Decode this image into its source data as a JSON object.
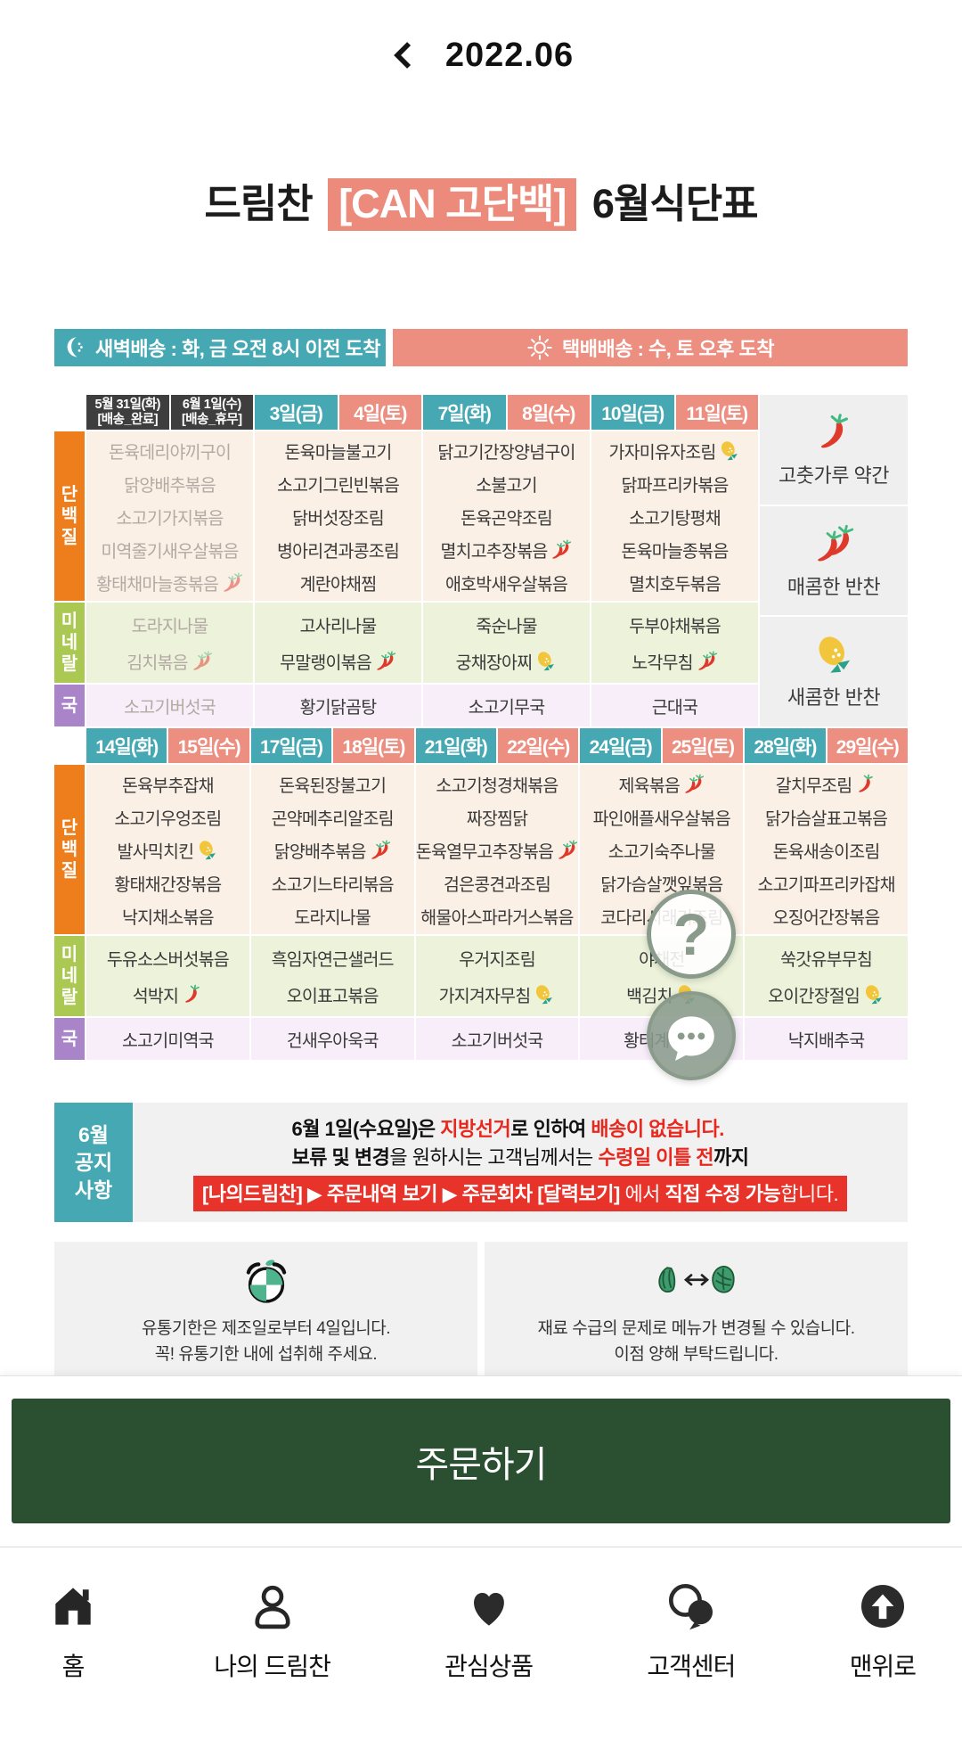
{
  "header": {
    "month": "2022.06"
  },
  "title": {
    "prefix": "드림찬",
    "highlight": "[CAN 고단백]",
    "suffix": "6월식단표"
  },
  "banners": {
    "dawn": {
      "icon": "moon",
      "text": "새벽배송 : 화, 금 오전 8시 이전 도착"
    },
    "parcel": {
      "icon": "sun",
      "text": "택배배송 : 수, 토  오후 도착"
    }
  },
  "row_labels": {
    "protein": "단백질",
    "mineral": "미네랄",
    "soup": "국"
  },
  "legend": [
    {
      "icon": "chili1",
      "label": "고춧가루 약간"
    },
    {
      "icon": "chili2",
      "label": "매콤한 반찬"
    },
    {
      "icon": "lemon",
      "label": "새콤한 반찬"
    }
  ],
  "weeks": [
    {
      "dates": [
        {
          "label": "5월 31일(화)",
          "sub": "[배송_완료]",
          "type": "dark"
        },
        {
          "label": "6월 1일(수)",
          "sub": "[배송_휴무]",
          "type": "dark"
        },
        {
          "label": "3일(금)",
          "type": "teal"
        },
        {
          "label": "4일(토)",
          "type": "salmon"
        },
        {
          "label": "7일(화)",
          "type": "teal"
        },
        {
          "label": "8일(수)",
          "type": "salmon"
        },
        {
          "label": "10일(금)",
          "type": "teal"
        },
        {
          "label": "11일(토)",
          "type": "salmon"
        }
      ],
      "protein": [
        {
          "muted": true,
          "items": [
            {
              "t": "돈육데리야끼구이"
            },
            {
              "t": "닭양배추볶음"
            },
            {
              "t": "소고기가지볶음"
            },
            {
              "t": "미역줄기새우살볶음"
            },
            {
              "t": "황태채마늘종볶음",
              "icon": "chili2"
            }
          ]
        },
        {
          "items": [
            {
              "t": "돈육마늘불고기"
            },
            {
              "t": "소고기그린빈볶음"
            },
            {
              "t": "닭버섯장조림"
            },
            {
              "t": "병아리견과콩조림"
            },
            {
              "t": "계란야채찜"
            }
          ]
        },
        {
          "items": [
            {
              "t": "닭고기간장양념구이"
            },
            {
              "t": "소불고기"
            },
            {
              "t": "돈육곤약조림"
            },
            {
              "t": "멸치고추장볶음",
              "icon": "chili2"
            },
            {
              "t": "애호박새우살볶음"
            }
          ]
        },
        {
          "items": [
            {
              "t": "가자미유자조림",
              "icon": "lemon"
            },
            {
              "t": "닭파프리카볶음"
            },
            {
              "t": "소고기탕평채"
            },
            {
              "t": "돈육마늘종볶음"
            },
            {
              "t": "멸치호두볶음"
            }
          ]
        }
      ],
      "mineral": [
        {
          "muted": true,
          "items": [
            {
              "t": "도라지나물"
            },
            {
              "t": "김치볶음",
              "icon": "chili2"
            }
          ]
        },
        {
          "items": [
            {
              "t": "고사리나물"
            },
            {
              "t": "무말랭이볶음",
              "icon": "chili2"
            }
          ]
        },
        {
          "items": [
            {
              "t": "죽순나물"
            },
            {
              "t": "궁채장아찌",
              "icon": "lemon"
            }
          ]
        },
        {
          "items": [
            {
              "t": "두부야채볶음"
            },
            {
              "t": "노각무침",
              "icon": "chili2"
            }
          ]
        }
      ],
      "soup": [
        {
          "muted": true,
          "items": [
            {
              "t": "소고기버섯국"
            }
          ]
        },
        {
          "items": [
            {
              "t": "황기닭곰탕"
            }
          ]
        },
        {
          "items": [
            {
              "t": "소고기무국"
            }
          ]
        },
        {
          "items": [
            {
              "t": "근대국"
            }
          ]
        }
      ]
    },
    {
      "dates": [
        {
          "label": "14일(화)",
          "type": "teal"
        },
        {
          "label": "15일(수)",
          "type": "salmon"
        },
        {
          "label": "17일(금)",
          "type": "teal"
        },
        {
          "label": "18일(토)",
          "type": "salmon"
        },
        {
          "label": "21일(화)",
          "type": "teal"
        },
        {
          "label": "22일(수)",
          "type": "salmon"
        },
        {
          "label": "24일(금)",
          "type": "teal"
        },
        {
          "label": "25일(토)",
          "type": "salmon"
        },
        {
          "label": "28일(화)",
          "type": "teal"
        },
        {
          "label": "29일(수)",
          "type": "salmon"
        }
      ],
      "protein": [
        {
          "items": [
            {
              "t": "돈육부추잡채"
            },
            {
              "t": "소고기우엉조림"
            },
            {
              "t": "발사믹치킨",
              "icon": "lemon"
            },
            {
              "t": "황태채간장볶음"
            },
            {
              "t": "낙지채소볶음"
            }
          ]
        },
        {
          "items": [
            {
              "t": "돈육된장불고기"
            },
            {
              "t": "곤약메추리알조림"
            },
            {
              "t": "닭양배추볶음",
              "icon": "chili2"
            },
            {
              "t": "소고기느타리볶음"
            },
            {
              "t": "도라지나물"
            }
          ]
        },
        {
          "items": [
            {
              "t": "소고기청경채볶음"
            },
            {
              "t": "짜장찜닭"
            },
            {
              "t": "돈육열무고추장볶음",
              "icon": "chili2"
            },
            {
              "t": "검은콩견과조림"
            },
            {
              "t": "해물아스파라거스볶음"
            }
          ]
        },
        {
          "items": [
            {
              "t": "제육볶음",
              "icon": "chili2"
            },
            {
              "t": "파인애플새우살볶음"
            },
            {
              "t": "소고기숙주나물"
            },
            {
              "t": "닭가슴살깻잎볶음"
            },
            {
              "t": "코다리시래기조림"
            }
          ]
        },
        {
          "items": [
            {
              "t": "갈치무조림",
              "icon": "chili1"
            },
            {
              "t": "닭가슴살표고볶음"
            },
            {
              "t": "돈육새송이조림"
            },
            {
              "t": "소고기파프리카잡채"
            },
            {
              "t": "오징어간장볶음"
            }
          ]
        }
      ],
      "mineral": [
        {
          "items": [
            {
              "t": "두유소스버섯볶음"
            },
            {
              "t": "석박지",
              "icon": "chili1"
            }
          ]
        },
        {
          "items": [
            {
              "t": "흑임자연근샐러드"
            },
            {
              "t": "오이표고볶음"
            }
          ]
        },
        {
          "items": [
            {
              "t": "우거지조림"
            },
            {
              "t": "가지겨자무침",
              "icon": "lemon"
            }
          ]
        },
        {
          "items": [
            {
              "t": "야채전"
            },
            {
              "t": "백김치",
              "icon": "lemon"
            }
          ]
        },
        {
          "items": [
            {
              "t": "쑥갓유부무침"
            },
            {
              "t": "오이간장절임",
              "icon": "lemon"
            }
          ]
        }
      ],
      "soup": [
        {
          "items": [
            {
              "t": "소고기미역국"
            }
          ]
        },
        {
          "items": [
            {
              "t": "건새우아욱국"
            }
          ]
        },
        {
          "items": [
            {
              "t": "소고기버섯국"
            }
          ]
        },
        {
          "items": [
            {
              "t": "황태계란국"
            }
          ]
        },
        {
          "items": [
            {
              "t": "낙지배추국"
            }
          ]
        }
      ]
    }
  ],
  "notice": {
    "label_lines": [
      "6월",
      "공지",
      "사항"
    ],
    "lines": [
      {
        "segments": [
          {
            "t": "6월 1일(수요일)은 ",
            "b": true
          },
          {
            "t": "지방선거",
            "b": true,
            "red": true
          },
          {
            "t": "로 인하여 ",
            "b": true
          },
          {
            "t": "배송이 없습니다.",
            "b": true,
            "red": true
          }
        ]
      },
      {
        "segments": [
          {
            "t": "보류 및 변경",
            "b": true
          },
          {
            "t": "을 원하시는 고객님께서는 "
          },
          {
            "t": "수령일 이틀 전",
            "b": true,
            "red": true
          },
          {
            "t": "까지",
            "b": true
          }
        ]
      }
    ],
    "banner_segments": [
      {
        "t": "[나의드림찬] ▶ 주문내역 보기 ▶ 주문회차 [달력보기]",
        "b": true
      },
      {
        "t": " 에서 "
      },
      {
        "t": "직접 수정 가능",
        "b": true
      },
      {
        "t": "합니다."
      }
    ]
  },
  "info_boxes": [
    {
      "icon": "alarm",
      "wide": false,
      "lines": [
        "유통기한은 제조일로부터 4일입니다.",
        "꼭! 유통기한 내에 섭취해 주세요."
      ]
    },
    {
      "icon": "swap",
      "wide": true,
      "lines": [
        "재료 수급의 문제로 메뉴가 변경될 수 있습니다.",
        "이점 양해 부탁드립니다."
      ]
    }
  ],
  "floating": {
    "help_label": "?"
  },
  "order_button": {
    "label": "주문하기"
  },
  "bottom_nav": [
    {
      "icon": "home",
      "label": "홈"
    },
    {
      "icon": "user",
      "label": "나의 드림찬"
    },
    {
      "icon": "heart",
      "label": "관심상품"
    },
    {
      "icon": "chat2",
      "label": "고객센터"
    },
    {
      "icon": "up",
      "label": "맨위로"
    }
  ],
  "colors": {
    "teal": "#45a8b3",
    "salmon": "#ec8e80",
    "orange": "#ee7d1c",
    "green": "#abc952",
    "purple": "#a984c8",
    "dark_date": "#3e3e3e",
    "protein_bg": "#fbf0e6",
    "mineral_bg": "#edf3da",
    "soup_bg": "#f7eef9",
    "notice_red": "#e8332b",
    "order_green": "#2a5031",
    "fab": "#8a9b8c"
  }
}
